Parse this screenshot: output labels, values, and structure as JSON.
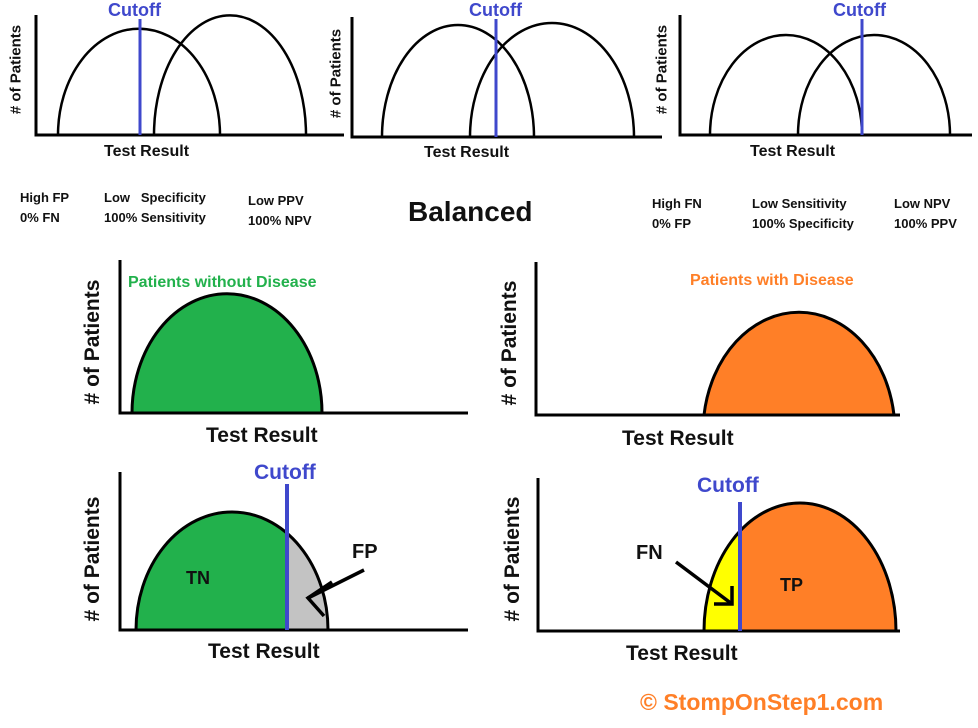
{
  "top_row": {
    "panel_left": {
      "cutoff_label": "Cutoff",
      "y_label": "# of Patients",
      "x_label": "Test Result"
    },
    "panel_middle": {
      "cutoff_label": "Cutoff",
      "y_label": "# of Patients",
      "x_label": "Test Result"
    },
    "panel_right": {
      "cutoff_label": "Cutoff",
      "y_label": "# of Patients",
      "x_label": "Test Result"
    }
  },
  "captions": {
    "left": {
      "col1": [
        "High FP",
        "0% FN"
      ],
      "col2": [
        "Low   Specificity",
        "100% Sensitivity"
      ],
      "col3": [
        "Low PPV",
        "100% NPV"
      ]
    },
    "center": "Balanced",
    "right": {
      "col1": [
        "High FN",
        "0% FP"
      ],
      "col2": [
        "Low Sensitivity",
        "100% Specificity"
      ],
      "col3": [
        "Low NPV",
        "100% PPV"
      ]
    }
  },
  "middle_row": {
    "left": {
      "title": "Patients without Disease",
      "y_label": "# of Patients",
      "x_label": "Test Result"
    },
    "right": {
      "title": "Patients with Disease",
      "y_label": "# of Patients",
      "x_label": "Test Result"
    }
  },
  "bottom_row": {
    "left": {
      "cutoff_label": "Cutoff",
      "region_label": "TN",
      "arrow_label": "FP",
      "y_label": "# of Patients",
      "x_label": "Test Result"
    },
    "right": {
      "cutoff_label": "Cutoff",
      "region_label": "TP",
      "arrow_label": "FN",
      "y_label": "# of Patients",
      "x_label": "Test Result"
    }
  },
  "footer": {
    "copyright": "© StompOnStep1.com"
  },
  "colors": {
    "cutoff_line": "#3f48cc",
    "no_disease_fill": "#22b14c",
    "disease_fill": "#ff7f27",
    "false_positive_fill": "#c3c3c3",
    "false_negative_fill": "#ffff00",
    "title_green": "#22b14c",
    "title_orange": "#ff7f27",
    "footer_orange": "#ff7f27"
  }
}
